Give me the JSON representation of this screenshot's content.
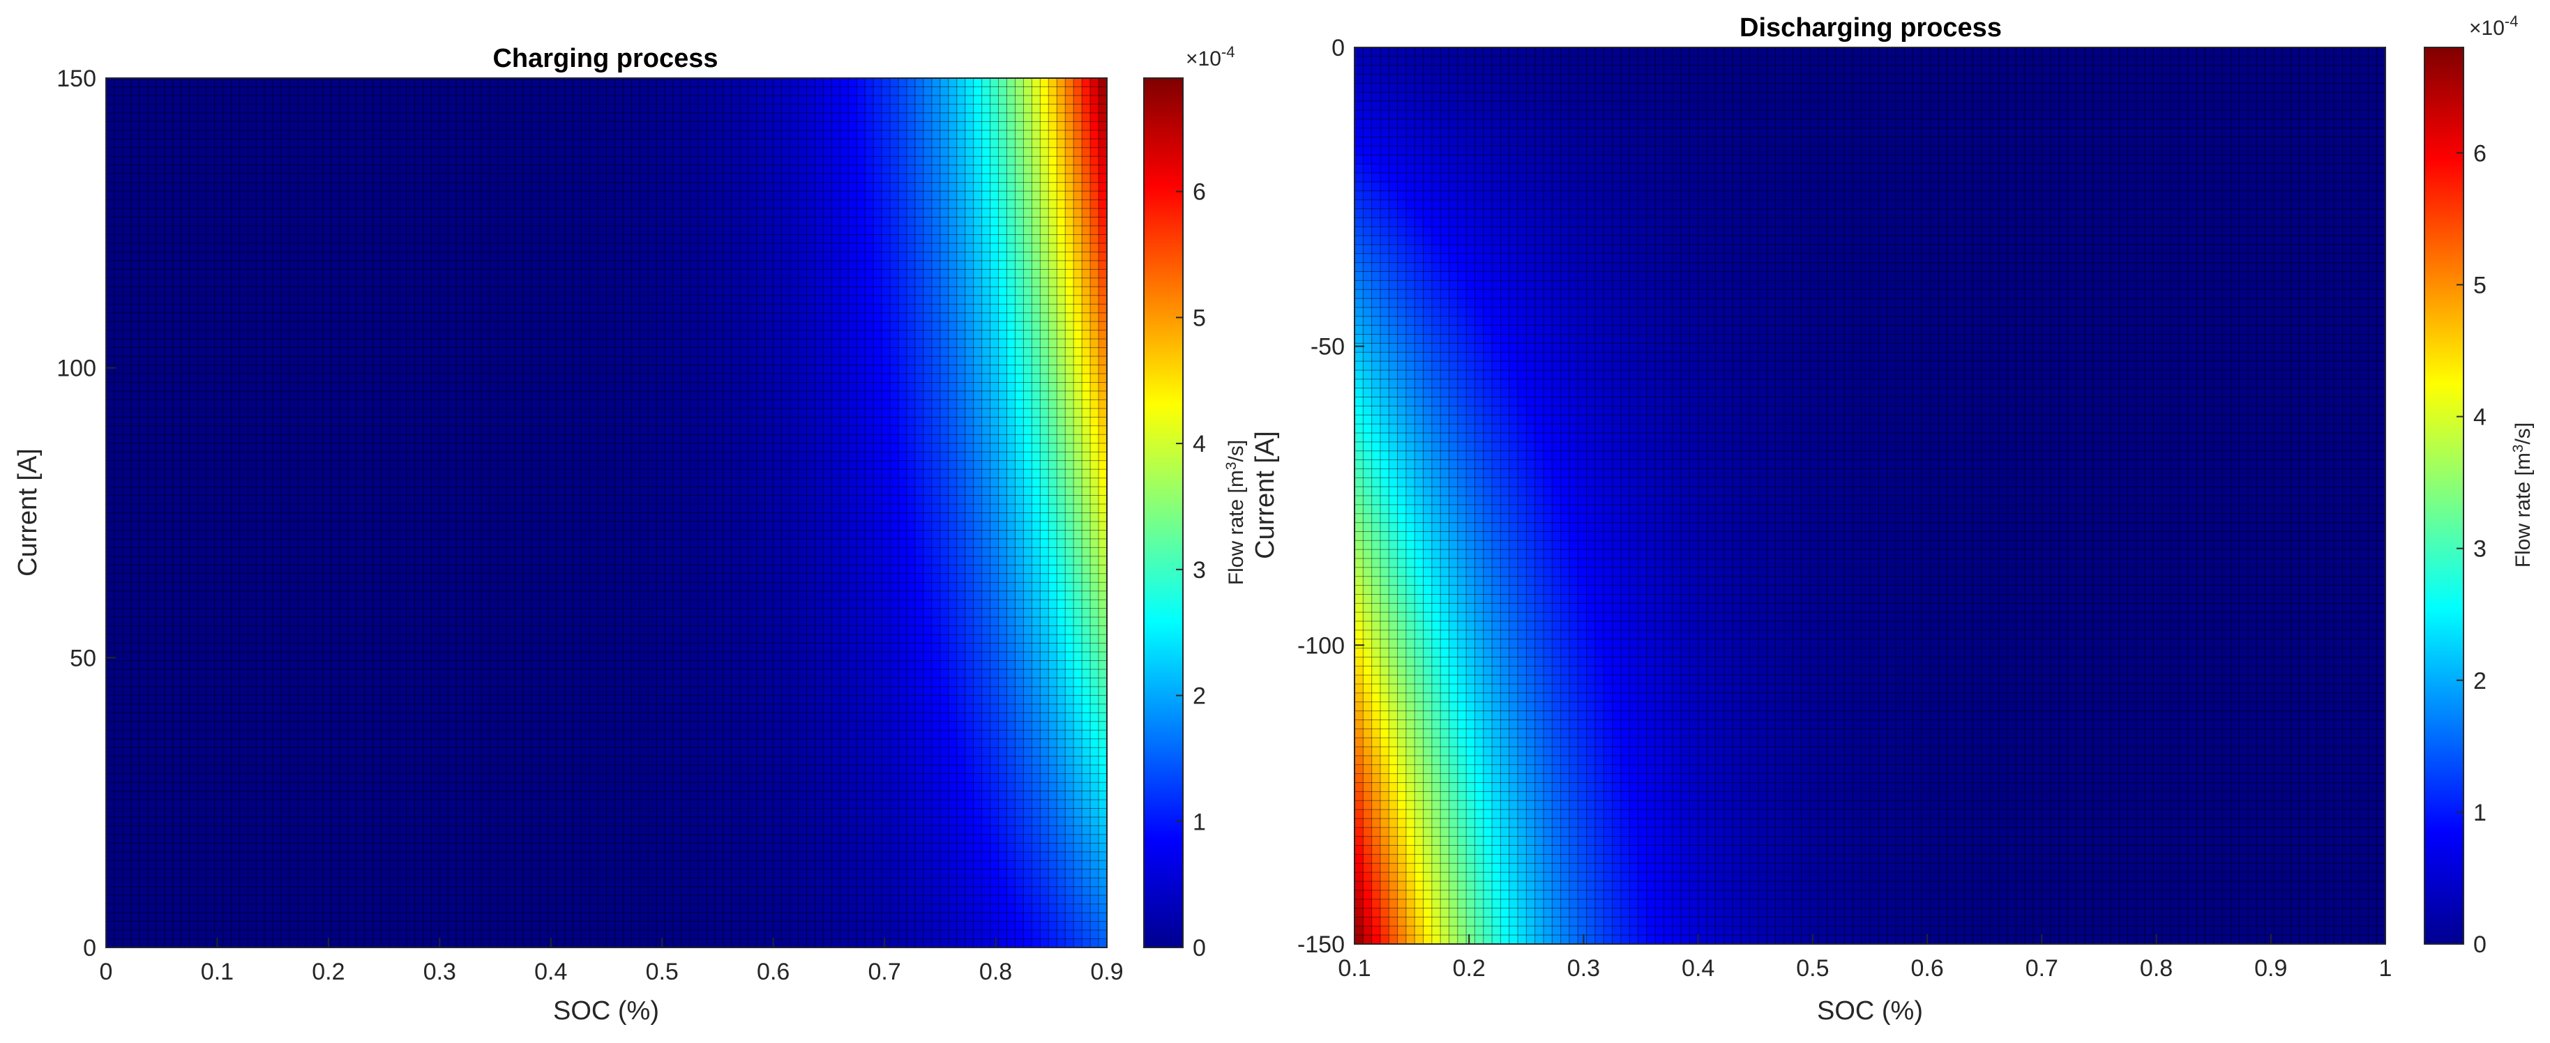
{
  "chart_data": [
    {
      "type": "heatmap",
      "title": "Charging process",
      "xlabel": "SOC (%)",
      "ylabel": "Current [A]",
      "xlim": [
        0,
        0.9
      ],
      "ylim": [
        0,
        150
      ],
      "x_ticks": [
        "0",
        "0.1",
        "0.2",
        "0.3",
        "0.4",
        "0.5",
        "0.6",
        "0.7",
        "0.8",
        "0.9"
      ],
      "y_ticks": [
        "0",
        "50",
        "100",
        "150"
      ],
      "colormap": "jet",
      "grid_lines": true,
      "colorbar": {
        "label_main": "Flow rate [m",
        "label_sup": "3",
        "label_end": "/s]",
        "multiplier_base": "×10",
        "multiplier_exp": "-4",
        "clim": [
          0,
          6.9
        ],
        "ticks": [
          "0",
          "1",
          "2",
          "3",
          "4",
          "5",
          "6"
        ]
      },
      "trend": "flow rate rises with SOC toward 0.9 and with current; peak ~6.9e-4 m^3/s at SOC 0.9, current 150 A"
    },
    {
      "type": "heatmap",
      "title": "Discharging process",
      "xlabel": "SOC (%)",
      "ylabel": "Current [A]",
      "xlim": [
        0.1,
        1
      ],
      "ylim": [
        -150,
        0
      ],
      "x_ticks": [
        "0.1",
        "0.2",
        "0.3",
        "0.4",
        "0.5",
        "0.6",
        "0.7",
        "0.8",
        "0.9",
        "1"
      ],
      "y_ticks": [
        "-150",
        "-100",
        "-50",
        "0"
      ],
      "colormap": "jet",
      "grid_lines": true,
      "colorbar": {
        "label_main": "Flow rate [m",
        "label_sup": "3",
        "label_end": "/s]",
        "multiplier_base": "×10",
        "multiplier_exp": "-4",
        "clim": [
          0,
          6.8
        ],
        "ticks": [
          "0",
          "1",
          "2",
          "3",
          "4",
          "5",
          "6"
        ]
      },
      "trend": "flow rate rises as SOC falls toward 0.1 and as current magnitude grows; peak ~6.8e-4 m^3/s at SOC 0.1, current -150 A"
    }
  ]
}
